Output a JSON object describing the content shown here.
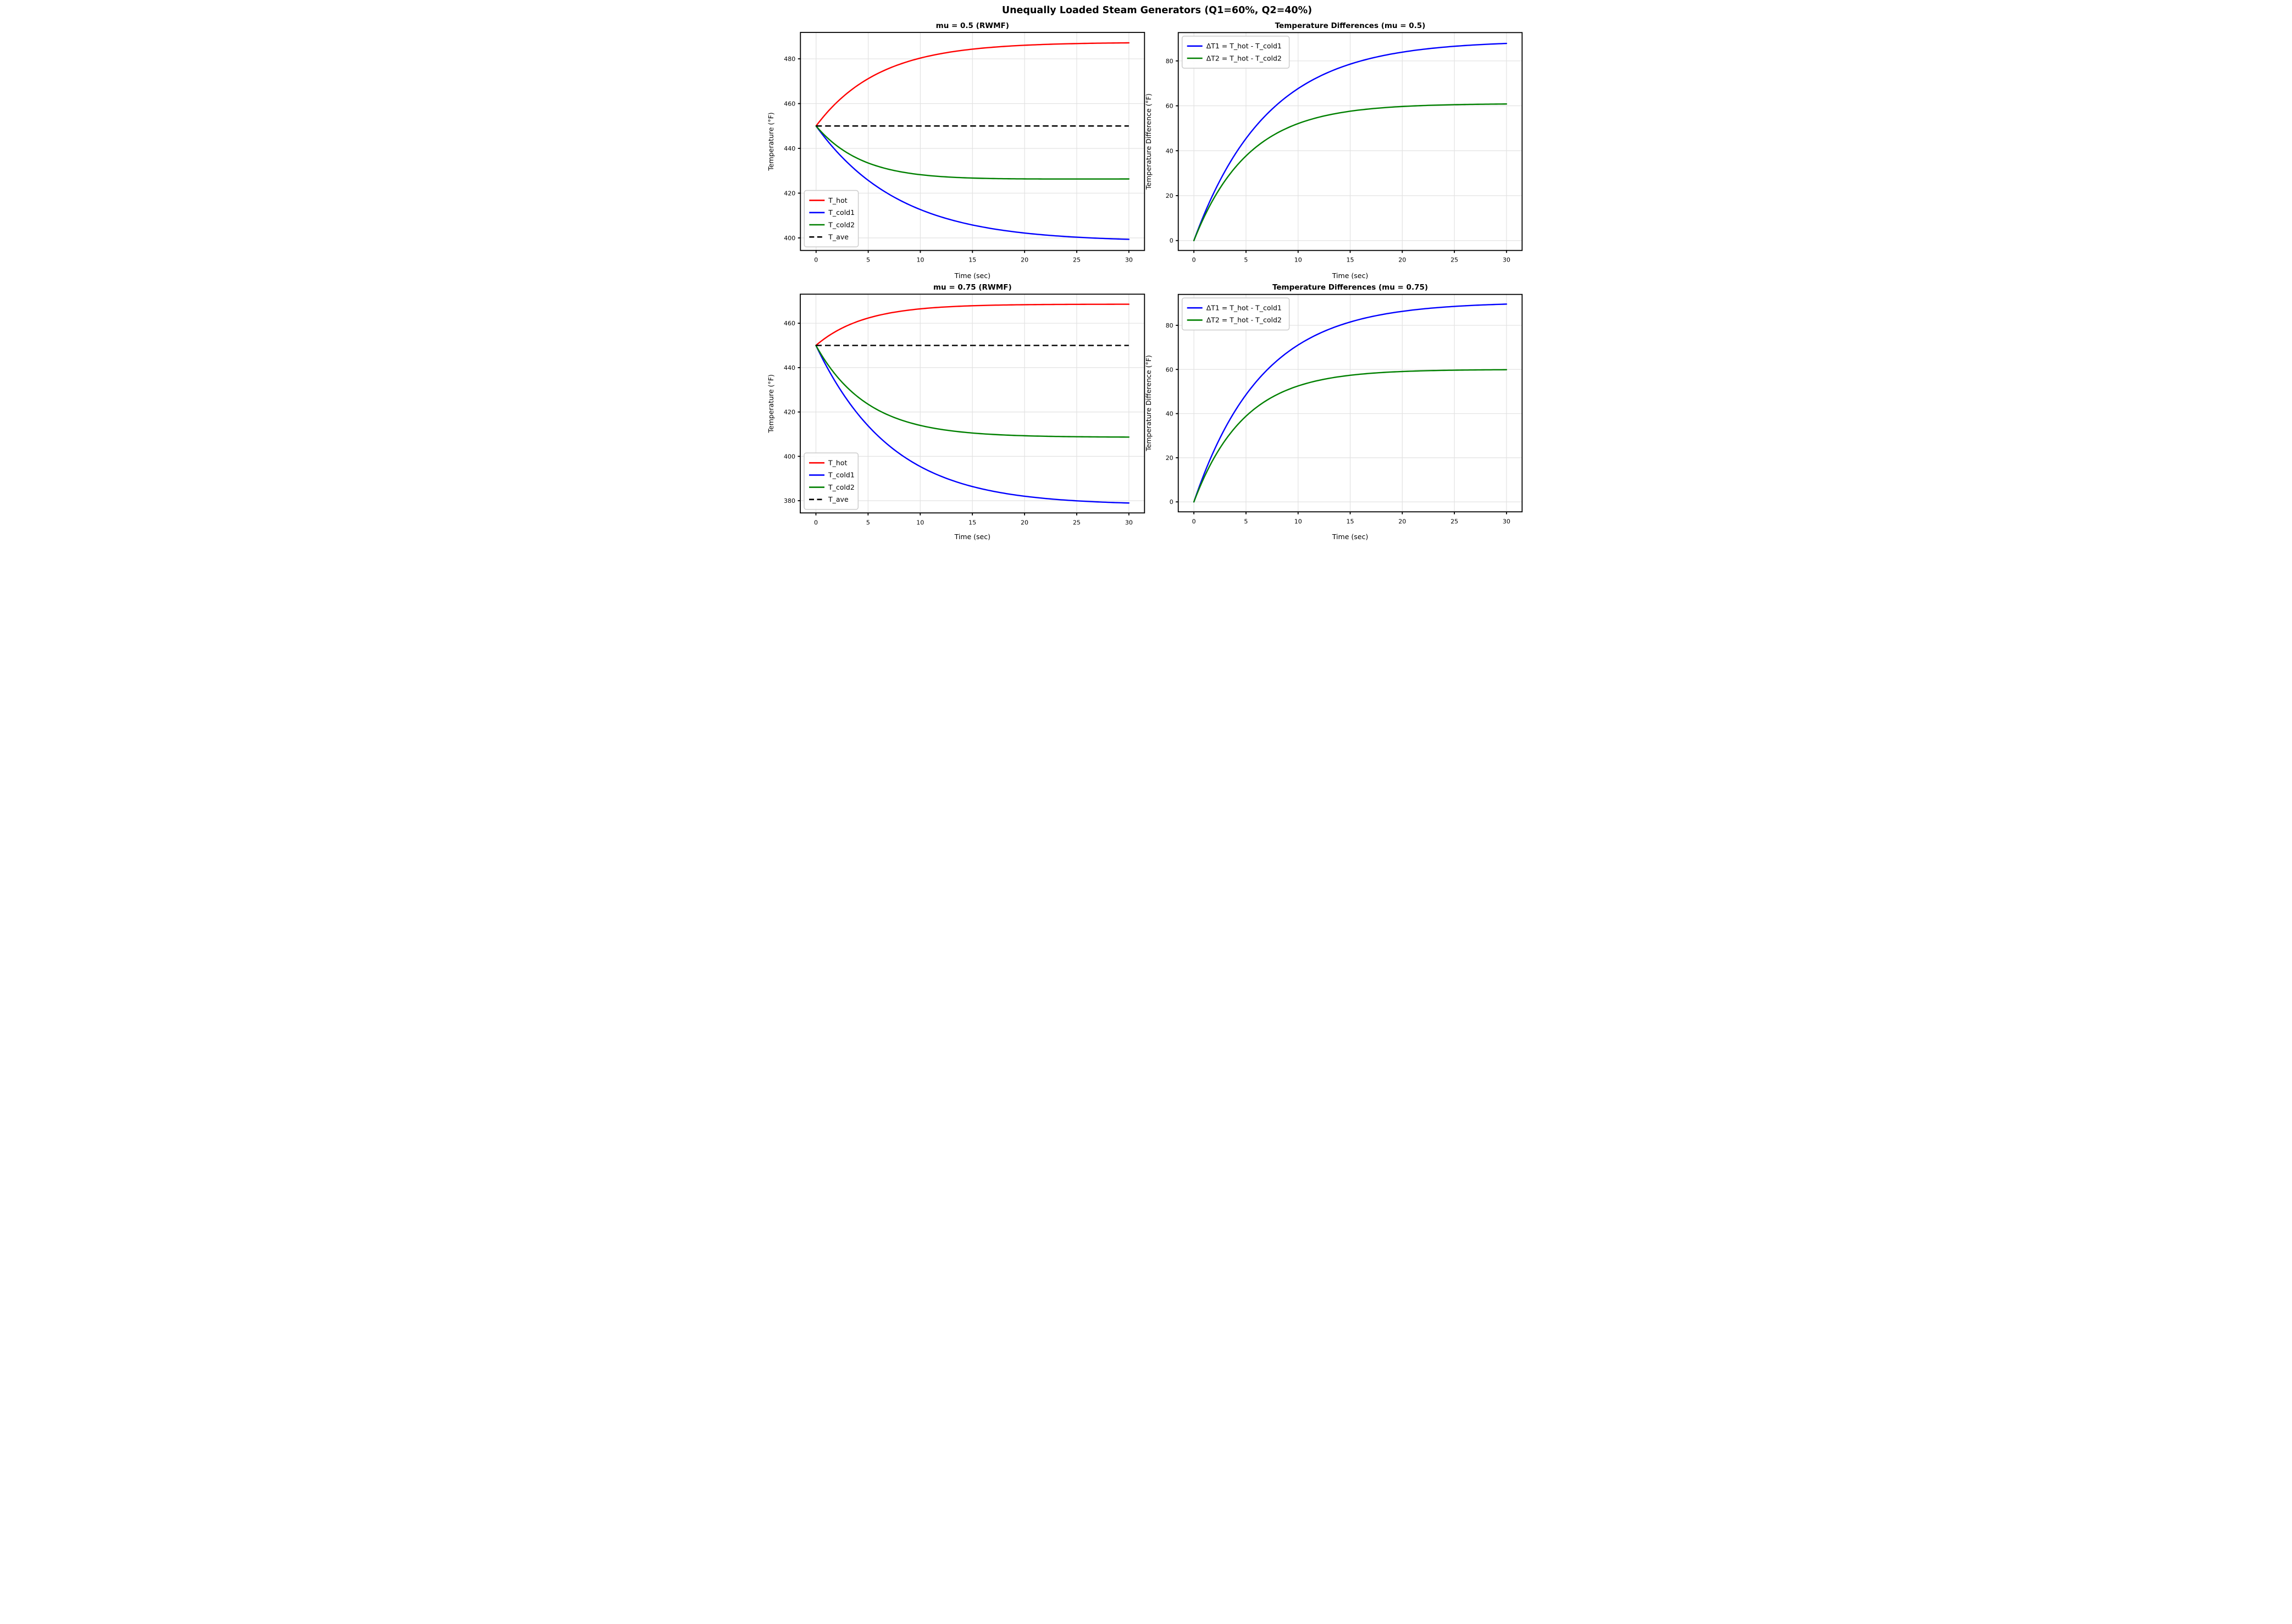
{
  "figure": {
    "suptitle": "Unequally Loaded Steam Generators (Q1=60%, Q2=40%)",
    "colors": {
      "hot": "#ff0000",
      "cold1": "#0000ff",
      "cold2": "#008000",
      "ave": "#000000",
      "grid": "#e2e2e2",
      "spine": "#000000",
      "legend_border": "#cccccc",
      "background": "#ffffff"
    }
  },
  "chart_data": [
    {
      "id": "temperatures-mu-0.5",
      "type": "line",
      "title": "mu = 0.5 (RWMF)",
      "xlabel": "Time (sec)",
      "ylabel": "Temperature (°F)",
      "xlim": [
        -1.5,
        31.5
      ],
      "ylim": [
        394.4,
        491.8
      ],
      "xticks": [
        0,
        5,
        10,
        15,
        20,
        25,
        30
      ],
      "yticks": [
        400,
        420,
        440,
        460,
        480
      ],
      "grid": true,
      "legend_position": "lower-left",
      "x_sample": [
        0,
        5,
        10,
        15,
        20,
        25,
        30
      ],
      "series": [
        {
          "name": "T_hot",
          "color": "#ff0000",
          "linestyle": "solid",
          "model": {
            "kind": "exp",
            "start": 450,
            "amp": 37.4,
            "tau": 6.0
          },
          "values": [
            450,
            471.1,
            480.3,
            484.3,
            486.1,
            486.8,
            487.1
          ]
        },
        {
          "name": "T_cold1",
          "color": "#0000ff",
          "linestyle": "solid",
          "model": {
            "kind": "exp2",
            "start": 450,
            "amp1": 37.4,
            "tau1": 6.0,
            "amp2": -89.0,
            "tau2": 7.0
          },
          "values": [
            450,
            425.7,
            412.6,
            405.7,
            402.2,
            400.3,
            399.3
          ]
        },
        {
          "name": "T_cold2",
          "color": "#008000",
          "linestyle": "solid",
          "model": {
            "kind": "exp2",
            "start": 450,
            "amp1": 37.4,
            "tau1": 6.0,
            "amp2": -61.0,
            "tau2": 5.2
          },
          "values": [
            450,
            433.4,
            428.2,
            426.7,
            426.4,
            426.3,
            426.3
          ]
        },
        {
          "name": "T_ave",
          "color": "#000000",
          "linestyle": "dashed",
          "model": {
            "kind": "const",
            "value": 450
          },
          "values": [
            450,
            450,
            450,
            450,
            450,
            450,
            450
          ]
        }
      ]
    },
    {
      "id": "temp-differences-mu-0.5",
      "type": "line",
      "title": "Temperature Differences (mu = 0.5)",
      "xlabel": "Time (sec)",
      "ylabel": "Temperature Difference (°F)",
      "xlim": [
        -1.5,
        31.5
      ],
      "ylim": [
        -4.4,
        92.6
      ],
      "xticks": [
        0,
        5,
        10,
        15,
        20,
        25,
        30
      ],
      "yticks": [
        0,
        20,
        40,
        60,
        80
      ],
      "grid": true,
      "legend_position": "upper-left",
      "x_sample": [
        0,
        5,
        10,
        15,
        20,
        25,
        30
      ],
      "series": [
        {
          "name": "ΔT1 = T_hot - T_cold1",
          "color": "#0000ff",
          "linestyle": "solid",
          "model": {
            "kind": "exp",
            "start": 0,
            "amp": 89.0,
            "tau": 7.0
          },
          "values": [
            0,
            45.4,
            67.7,
            78.6,
            83.9,
            86.5,
            87.8
          ]
        },
        {
          "name": "ΔT2 = T_hot - T_cold2",
          "color": "#008000",
          "linestyle": "solid",
          "model": {
            "kind": "exp",
            "start": 0,
            "amp": 61.0,
            "tau": 5.2
          },
          "values": [
            0,
            37.7,
            52.1,
            57.6,
            59.7,
            60.5,
            60.8
          ]
        }
      ]
    },
    {
      "id": "temperatures-mu-0.75",
      "type": "line",
      "title": "mu = 0.75 (RWMF)",
      "xlabel": "Time (sec)",
      "ylabel": "Temperature (°F)",
      "xlim": [
        -1.5,
        31.5
      ],
      "ylim": [
        374.5,
        473.1
      ],
      "xticks": [
        0,
        5,
        10,
        15,
        20,
        25,
        30
      ],
      "yticks": [
        380,
        400,
        420,
        440,
        460
      ],
      "grid": true,
      "legend_position": "lower-left",
      "x_sample": [
        0,
        5,
        10,
        15,
        20,
        25,
        30
      ],
      "series": [
        {
          "name": "T_hot",
          "color": "#ff0000",
          "linestyle": "solid",
          "model": {
            "kind": "exp",
            "start": 450,
            "amp": 18.6,
            "tau": 4.6
          },
          "values": [
            450,
            462.3,
            466.5,
            467.9,
            468.4,
            468.5,
            468.6
          ]
        },
        {
          "name": "T_cold1",
          "color": "#0000ff",
          "linestyle": "solid",
          "model": {
            "kind": "exp2",
            "start": 450,
            "amp1": 18.6,
            "tau1": 4.6,
            "amp2": -90.5,
            "tau2": 6.5
          },
          "values": [
            450,
            413.7,
            395.4,
            386.4,
            382.1,
            379.9,
            379.0
          ]
        },
        {
          "name": "T_cold2",
          "color": "#008000",
          "linestyle": "solid",
          "model": {
            "kind": "exp2",
            "start": 450,
            "amp1": 18.6,
            "tau1": 4.6,
            "amp2": -60.0,
            "tau2": 4.8
          },
          "values": [
            450,
            423.5,
            414.0,
            410.5,
            409.3,
            408.8,
            408.7
          ]
        },
        {
          "name": "T_ave",
          "color": "#000000",
          "linestyle": "dashed",
          "model": {
            "kind": "const",
            "value": 450
          },
          "values": [
            450,
            450,
            450,
            450,
            450,
            450,
            450
          ]
        }
      ]
    },
    {
      "id": "temp-differences-mu-0.75",
      "type": "line",
      "title": "Temperature Differences (mu = 0.75)",
      "xlabel": "Time (sec)",
      "ylabel": "Temperature Difference (°F)",
      "xlim": [
        -1.5,
        31.5
      ],
      "ylim": [
        -4.5,
        94.0
      ],
      "xticks": [
        0,
        5,
        10,
        15,
        20,
        25,
        30
      ],
      "yticks": [
        0,
        20,
        40,
        60,
        80
      ],
      "grid": true,
      "legend_position": "upper-left",
      "x_sample": [
        0,
        5,
        10,
        15,
        20,
        25,
        30
      ],
      "series": [
        {
          "name": "ΔT1 = T_hot - T_cold1",
          "color": "#0000ff",
          "linestyle": "solid",
          "model": {
            "kind": "exp",
            "start": 0,
            "amp": 90.5,
            "tau": 6.5
          },
          "values": [
            0,
            48.6,
            71.1,
            81.5,
            86.3,
            88.6,
            89.6
          ]
        },
        {
          "name": "ΔT2 = T_hot - T_cold2",
          "color": "#008000",
          "linestyle": "solid",
          "model": {
            "kind": "exp",
            "start": 0,
            "amp": 60.0,
            "tau": 4.8
          },
          "values": [
            0,
            38.8,
            52.5,
            57.4,
            59.1,
            59.7,
            59.9
          ]
        }
      ]
    }
  ]
}
